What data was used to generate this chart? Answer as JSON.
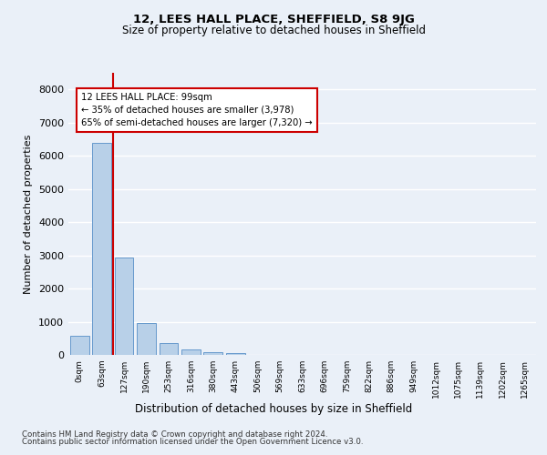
{
  "title_line1": "12, LEES HALL PLACE, SHEFFIELD, S8 9JG",
  "title_line2": "Size of property relative to detached houses in Sheffield",
  "xlabel": "Distribution of detached houses by size in Sheffield",
  "ylabel": "Number of detached properties",
  "bar_categories": [
    "0sqm",
    "63sqm",
    "127sqm",
    "190sqm",
    "253sqm",
    "316sqm",
    "380sqm",
    "443sqm",
    "506sqm",
    "569sqm",
    "633sqm",
    "696sqm",
    "759sqm",
    "822sqm",
    "886sqm",
    "949sqm",
    "1012sqm",
    "1075sqm",
    "1139sqm",
    "1202sqm",
    "1265sqm"
  ],
  "bar_values": [
    570,
    6380,
    2930,
    960,
    360,
    155,
    90,
    55,
    0,
    0,
    0,
    0,
    0,
    0,
    0,
    0,
    0,
    0,
    0,
    0,
    0
  ],
  "bar_color": "#b8d0e8",
  "bar_edge_color": "#6699cc",
  "ylim": [
    0,
    8500
  ],
  "yticks": [
    0,
    1000,
    2000,
    3000,
    4000,
    5000,
    6000,
    7000,
    8000
  ],
  "property_label": "12 LEES HALL PLACE: 99sqm",
  "annotation_line1": "← 35% of detached houses are smaller (3,978)",
  "annotation_line2": "65% of semi-detached houses are larger (7,320) →",
  "footer_line1": "Contains HM Land Registry data © Crown copyright and database right 2024.",
  "footer_line2": "Contains public sector information licensed under the Open Government Licence v3.0.",
  "background_color": "#eaf0f8",
  "plot_background": "#eaf0f8",
  "grid_color": "#ffffff",
  "text_color": "#000000",
  "annotation_box_color": "#cc0000",
  "vline_color": "#cc0000"
}
